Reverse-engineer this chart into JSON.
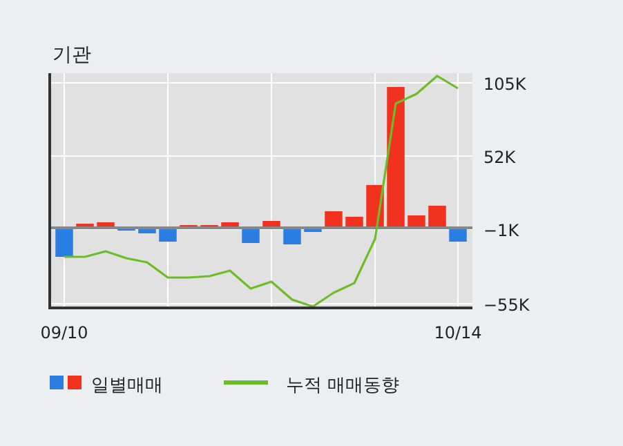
{
  "chart_data": {
    "type": "bar",
    "title": "기관",
    "categories": [
      "09/10",
      null,
      null,
      null,
      null,
      null,
      null,
      null,
      null,
      null,
      null,
      null,
      null,
      null,
      null,
      null,
      null,
      null,
      null,
      "10/14"
    ],
    "series": [
      {
        "name": "일별매매",
        "values": [
          -21,
          3,
          4,
          -2,
          -4,
          -10,
          2,
          2,
          4,
          -11,
          5,
          -12,
          -3,
          12,
          8,
          31,
          102,
          9,
          16,
          -10
        ],
        "colors": [
          "#2a7de1",
          "#f0321e",
          "#f0321e",
          "#2a7de1",
          "#2a7de1",
          "#2a7de1",
          "#f0321e",
          "#f0321e",
          "#f0321e",
          "#2a7de1",
          "#f0321e",
          "#2a7de1",
          "#2a7de1",
          "#f0321e",
          "#f0321e",
          "#f0321e",
          "#f0321e",
          "#f0321e",
          "#f0321e",
          "#2a7de1"
        ]
      },
      {
        "name": "누적 매매동향",
        "type": "line",
        "color": "#6cbd2a",
        "values": [
          -21,
          -21,
          -17,
          -22,
          -25,
          -36,
          -36,
          -35,
          -31,
          -44,
          -39,
          -52,
          -57,
          -47,
          -40,
          -8,
          90,
          97,
          110,
          101
        ]
      }
    ],
    "ylim": [
      -58,
      112
    ],
    "yticks": [
      {
        "value": 105,
        "label": "105K"
      },
      {
        "value": 52,
        "label": "52K"
      },
      {
        "value": -1,
        "label": "−1K"
      },
      {
        "value": -55,
        "label": "−55K"
      }
    ],
    "grid": true,
    "legend": "bottom"
  }
}
